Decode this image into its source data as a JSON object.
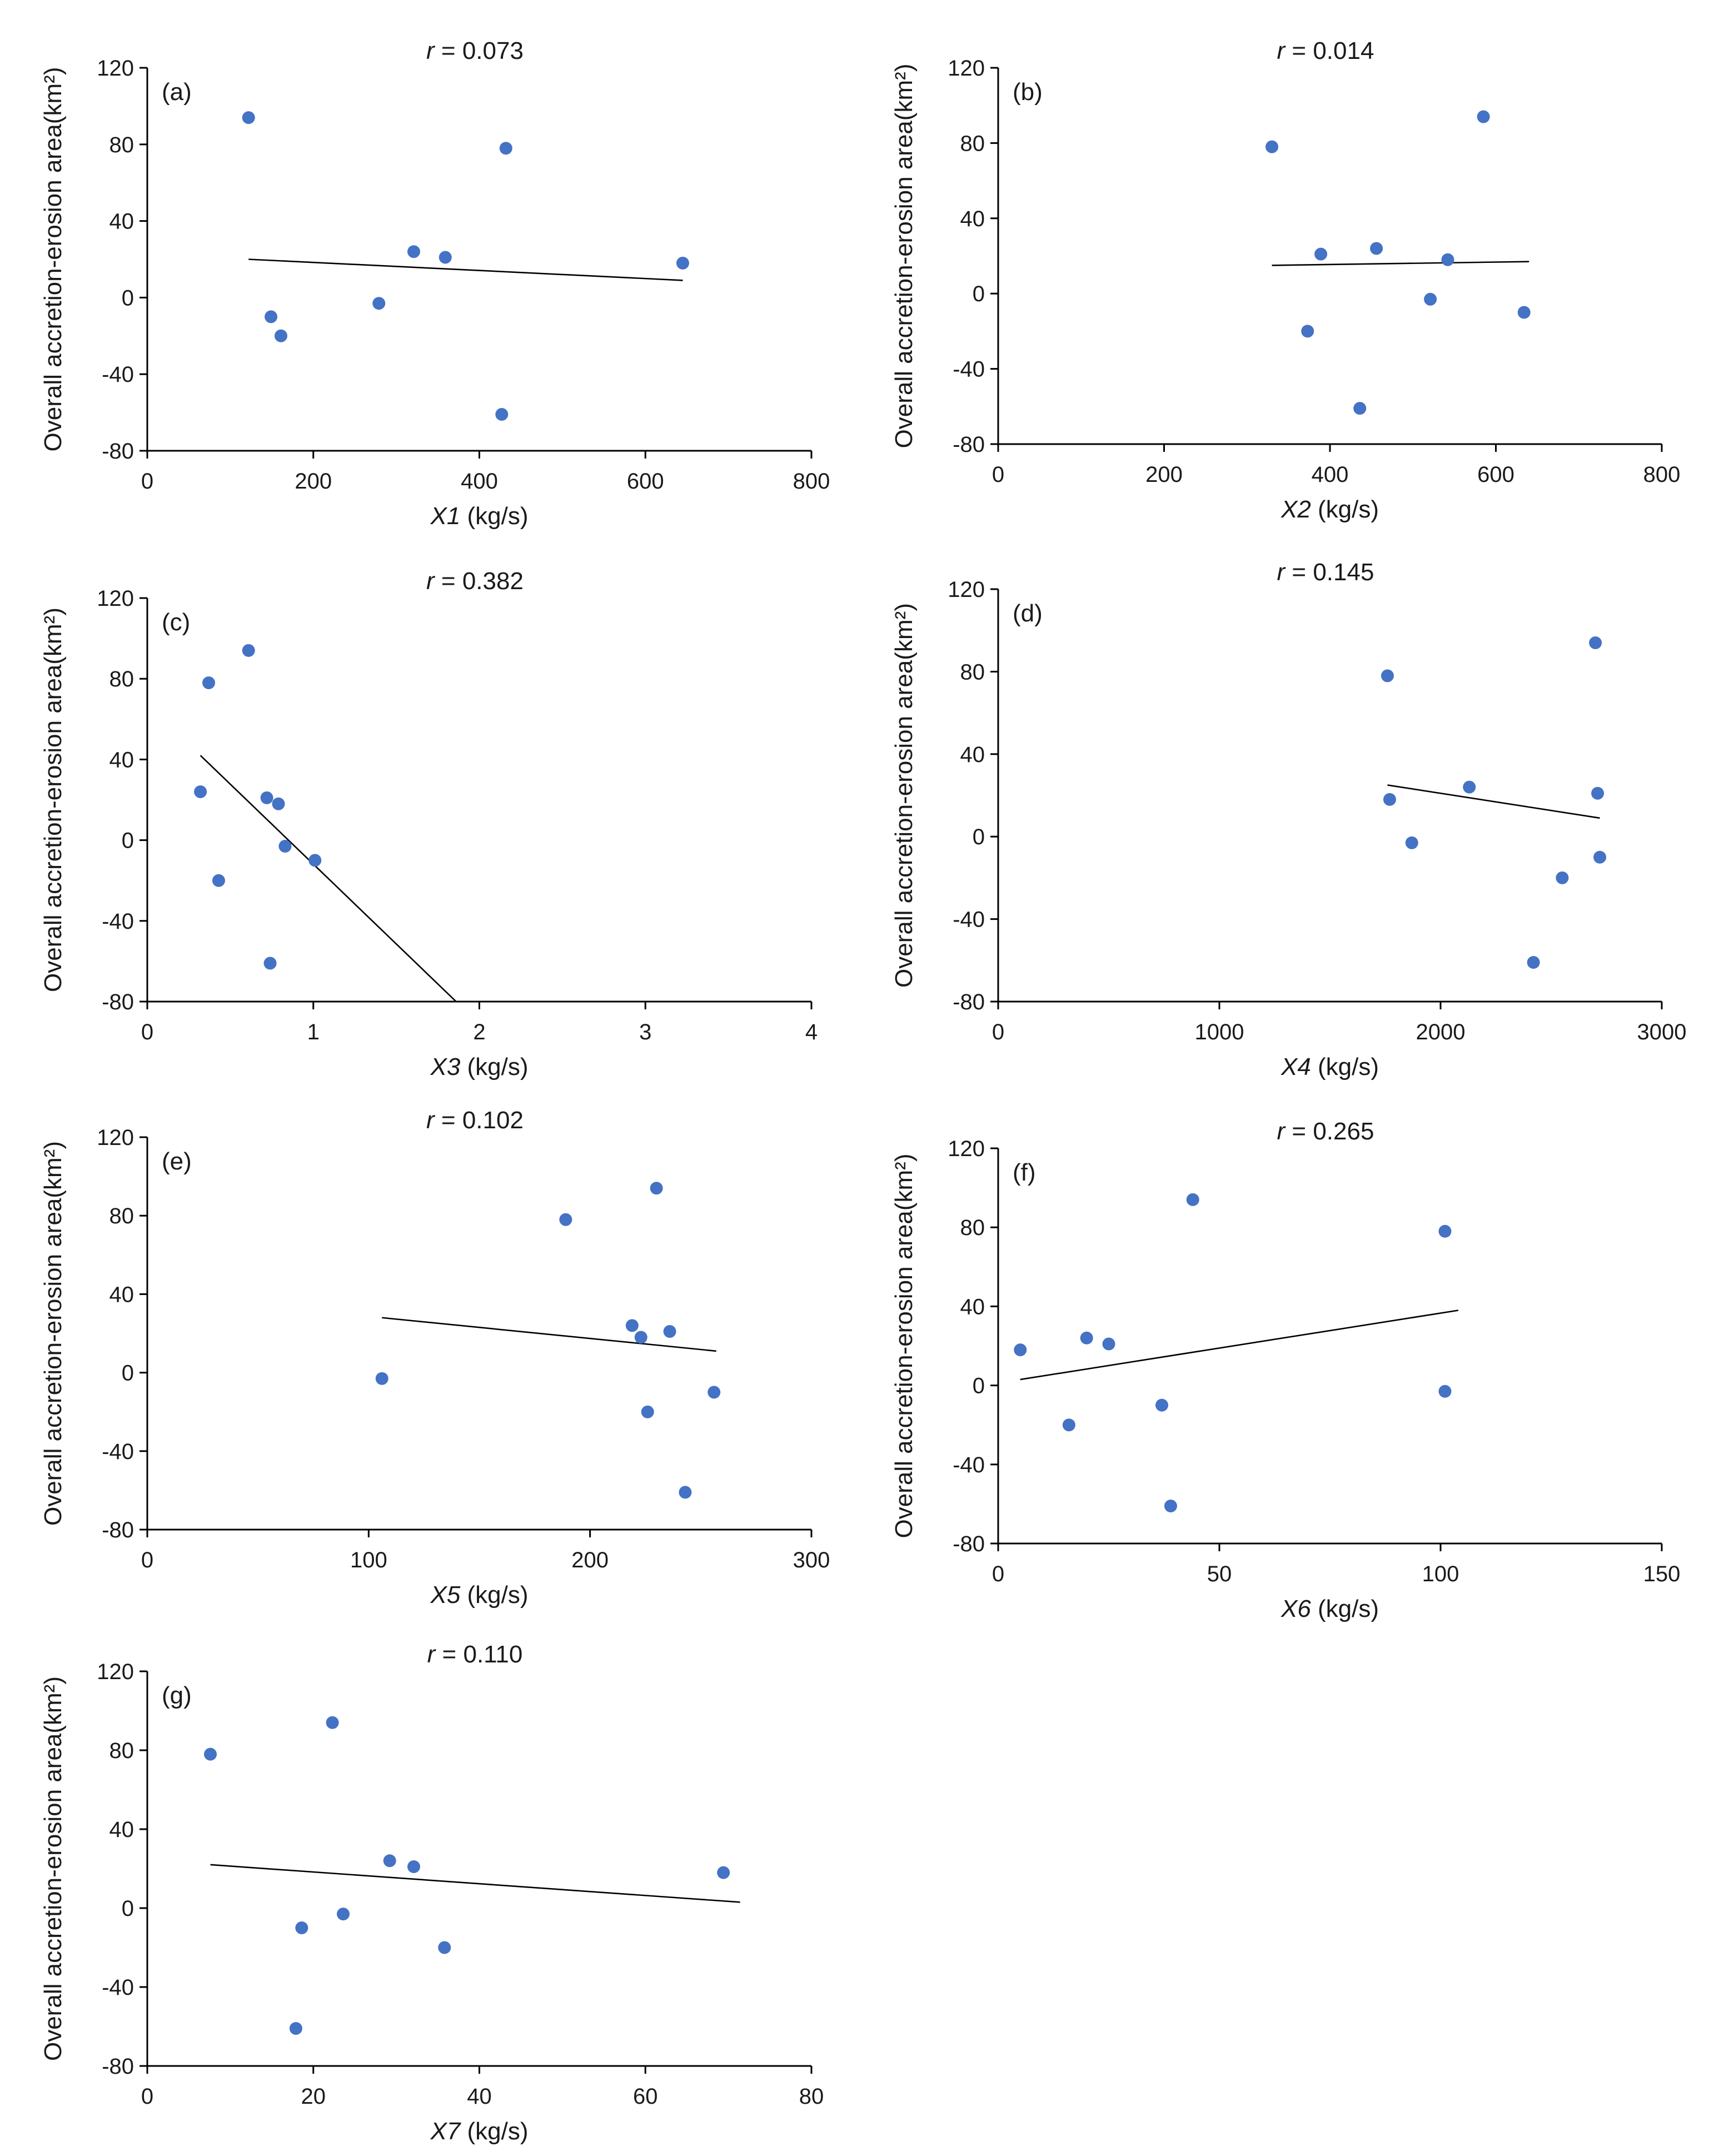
{
  "chart_data": [
    {
      "type": "scatter",
      "panel": "(a)",
      "r_symbol": "r",
      "r_text": " = 0.073",
      "xlabel_var": "X1",
      "xlabel_unit": " (kg/s)",
      "ylabel": "Overall accretion-erosion area(km²)",
      "xlim": [
        0,
        800
      ],
      "ylim": [
        -80,
        120
      ],
      "xticks": [
        0,
        200,
        400,
        600,
        800
      ],
      "yticks": [
        -80,
        -40,
        0,
        40,
        80,
        120
      ],
      "points": [
        [
          122,
          94
        ],
        [
          149,
          -10
        ],
        [
          161,
          -20
        ],
        [
          279,
          -3
        ],
        [
          321,
          24
        ],
        [
          359,
          21
        ],
        [
          427,
          -61
        ],
        [
          432,
          78
        ],
        [
          645,
          18
        ]
      ],
      "trendline": [
        [
          122,
          20
        ],
        [
          645,
          9
        ]
      ]
    },
    {
      "type": "scatter",
      "panel": "(b)",
      "r_symbol": "r",
      "r_text": " = 0.014",
      "xlabel_var": "X2",
      "xlabel_unit": " (kg/s)",
      "ylabel": "Overall accretion-erosion area(km²)",
      "xlim": [
        0,
        800
      ],
      "ylim": [
        -80,
        120
      ],
      "xticks": [
        0,
        200,
        400,
        600,
        800
      ],
      "yticks": [
        -80,
        -40,
        0,
        40,
        80,
        120
      ],
      "points": [
        [
          330,
          78
        ],
        [
          373,
          -20
        ],
        [
          389,
          21
        ],
        [
          436,
          -61
        ],
        [
          456,
          24
        ],
        [
          521,
          -3
        ],
        [
          542,
          18
        ],
        [
          585,
          94
        ],
        [
          634,
          -10
        ]
      ],
      "trendline": [
        [
          330,
          15
        ],
        [
          640,
          17
        ]
      ]
    },
    {
      "type": "scatter",
      "panel": "(c)",
      "r_symbol": "r",
      "r_text": " = 0.382",
      "xlabel_var": "X3",
      "xlabel_unit": " (kg/s)",
      "ylabel": "Overall accretion-erosion area(km²)",
      "xlim": [
        0,
        4
      ],
      "ylim": [
        -80,
        120
      ],
      "xticks": [
        0,
        1,
        2,
        3,
        4
      ],
      "yticks": [
        -80,
        -40,
        0,
        40,
        80,
        120
      ],
      "points": [
        [
          0.32,
          24
        ],
        [
          0.37,
          78
        ],
        [
          0.43,
          -20
        ],
        [
          0.61,
          94
        ],
        [
          0.72,
          21
        ],
        [
          0.74,
          -61
        ],
        [
          0.79,
          18
        ],
        [
          0.83,
          -3
        ],
        [
          1.01,
          -10
        ]
      ],
      "trendline": [
        [
          0.32,
          42
        ],
        [
          1.86,
          -80
        ]
      ]
    },
    {
      "type": "scatter",
      "panel": "(d)",
      "r_symbol": "r",
      "r_text": " = 0.145",
      "xlabel_var": "X4",
      "xlabel_unit": " (kg/s)",
      "ylabel": "Overall accretion-erosion area(km²)",
      "xlim": [
        0,
        3000
      ],
      "ylim": [
        -80,
        120
      ],
      "xticks": [
        0,
        1000,
        2000,
        3000
      ],
      "yticks": [
        -80,
        -40,
        0,
        40,
        80,
        120
      ],
      "points": [
        [
          1760,
          78
        ],
        [
          1770,
          18
        ],
        [
          1870,
          -3
        ],
        [
          2130,
          24
        ],
        [
          2420,
          -61
        ],
        [
          2550,
          -20
        ],
        [
          2700,
          94
        ],
        [
          2710,
          21
        ],
        [
          2720,
          -10
        ]
      ],
      "trendline": [
        [
          1760,
          25
        ],
        [
          2720,
          9
        ]
      ]
    },
    {
      "type": "scatter",
      "panel": "(e)",
      "r_symbol": "r",
      "r_text": " = 0.102",
      "xlabel_var": "X5",
      "xlabel_unit": " (kg/s)",
      "ylabel": "Overall accretion-erosion area(km²)",
      "xlim": [
        0,
        300
      ],
      "ylim": [
        -80,
        120
      ],
      "xticks": [
        0,
        100,
        200,
        300
      ],
      "yticks": [
        -80,
        -40,
        0,
        40,
        80,
        120
      ],
      "points": [
        [
          106,
          -3
        ],
        [
          189,
          78
        ],
        [
          219,
          24
        ],
        [
          223,
          18
        ],
        [
          226,
          -20
        ],
        [
          230,
          94
        ],
        [
          236,
          21
        ],
        [
          243,
          -61
        ],
        [
          256,
          -10
        ]
      ],
      "trendline": [
        [
          106,
          28
        ],
        [
          257,
          11
        ]
      ]
    },
    {
      "type": "scatter",
      "panel": "(f)",
      "r_symbol": "r",
      "r_text": " = 0.265",
      "xlabel_var": "X6",
      "xlabel_unit": " (kg/s)",
      "ylabel": "Overall accretion-erosion area(km²)",
      "xlim": [
        0,
        150
      ],
      "ylim": [
        -80,
        120
      ],
      "xticks": [
        0,
        50,
        100,
        150
      ],
      "yticks": [
        -80,
        -40,
        0,
        40,
        80,
        120
      ],
      "points": [
        [
          5,
          18
        ],
        [
          16,
          -20
        ],
        [
          20,
          24
        ],
        [
          25,
          21
        ],
        [
          37,
          -10
        ],
        [
          39,
          -61
        ],
        [
          44,
          94
        ],
        [
          101,
          78
        ],
        [
          101,
          -3
        ]
      ],
      "trendline": [
        [
          5,
          3
        ],
        [
          104,
          38
        ]
      ]
    },
    {
      "type": "scatter",
      "panel": "(g)",
      "r_symbol": "r",
      "r_text": " = 0.110",
      "xlabel_var": "X7",
      "xlabel_unit": " (kg/s)",
      "ylabel": "Overall accretion-erosion area(km²)",
      "xlim": [
        0,
        80
      ],
      "ylim": [
        -80,
        120
      ],
      "xticks": [
        0,
        20,
        40,
        60,
        80
      ],
      "yticks": [
        -80,
        -40,
        0,
        40,
        80,
        120
      ],
      "points": [
        [
          7.6,
          78
        ],
        [
          17.9,
          -61
        ],
        [
          18.6,
          -10
        ],
        [
          22.3,
          94
        ],
        [
          23.6,
          -3
        ],
        [
          29.2,
          24
        ],
        [
          32.1,
          21
        ],
        [
          35.8,
          -20
        ],
        [
          69.4,
          18
        ]
      ],
      "trendline": [
        [
          7.6,
          22
        ],
        [
          71.4,
          3
        ]
      ]
    }
  ],
  "colors": {
    "point": "#4472c4",
    "axis": "#000000",
    "text": "#1a1a1a"
  }
}
